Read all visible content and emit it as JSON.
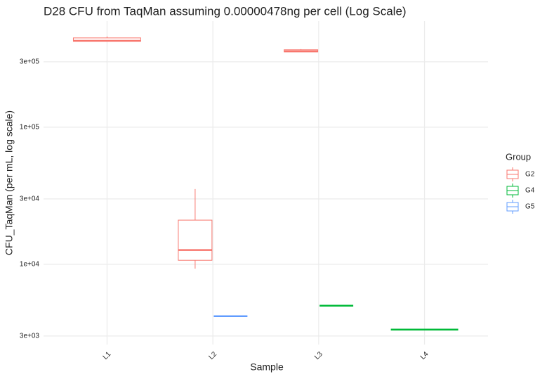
{
  "chart_data": {
    "type": "box",
    "title": "D28 CFU from TaqMan assuming 0.00000478ng per cell (Log Scale)",
    "x_label": "Sample",
    "y_label": "CFU_TaqMan (per mL, log scale)",
    "categories": [
      "L1",
      "L2",
      "L3",
      "L4"
    ],
    "log_y": true,
    "grid": true,
    "legend_title": "Group",
    "legend_position": "right",
    "ylim": [
      2600,
      594000
    ],
    "yticks": [
      {
        "value": 3000,
        "label": "3e+03"
      },
      {
        "value": 10000,
        "label": "1e+04"
      },
      {
        "value": 30000,
        "label": "3e+04"
      },
      {
        "value": 100000,
        "label": "1e+05"
      },
      {
        "value": 300000,
        "label": "3e+05"
      }
    ],
    "series": [
      {
        "name": "G2",
        "color": "#F8766D",
        "values": [
          {
            "min": 423000,
            "q1": 423000,
            "median": 427000,
            "q3": 448000,
            "max": 459000
          },
          {
            "min": 9300,
            "q1": 10700,
            "median": 12700,
            "q3": 21000,
            "max": 35400
          },
          {
            "min": 354000,
            "q1": 354000,
            "median": 358000,
            "q3": 367000,
            "max": 371000
          },
          null
        ]
      },
      {
        "name": "G4",
        "color": "#00BA38",
        "values": [
          null,
          null,
          {
            "min": 4990,
            "q1": 4990,
            "median": 4990,
            "q3": 4990,
            "max": 4990
          },
          {
            "min": 3340,
            "q1": 3340,
            "median": 3340,
            "q3": 3340,
            "max": 3340
          }
        ]
      },
      {
        "name": "G5",
        "color": "#619CFF",
        "values": [
          null,
          {
            "min": 4180,
            "q1": 4180,
            "median": 4180,
            "q3": 4180,
            "max": 4180
          },
          null,
          null
        ]
      }
    ]
  }
}
